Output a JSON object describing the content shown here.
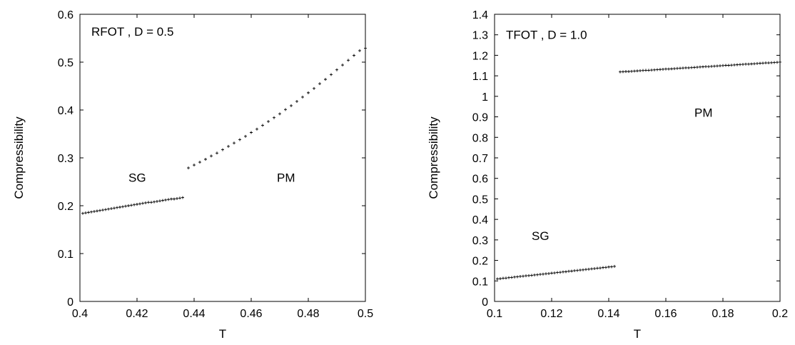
{
  "chart_data": [
    {
      "type": "scatter",
      "xlabel": "T",
      "ylabel": "Compressibility",
      "xlim": [
        0.4,
        0.5
      ],
      "ylim": [
        0,
        0.6
      ],
      "xticks": [
        "0.4",
        "0.42",
        "0.44",
        "0.46",
        "0.48",
        "0.5"
      ],
      "yticks": [
        "0",
        "0.1",
        "0.2",
        "0.3",
        "0.4",
        "0.5",
        "0.6"
      ],
      "grid": false,
      "annotations": [
        {
          "text": "RFOT , D = 0.5",
          "x": 0.404,
          "y": 0.555
        },
        {
          "text": "SG",
          "x": 0.417,
          "y": 0.25
        },
        {
          "text": "PM",
          "x": 0.469,
          "y": 0.25
        }
      ],
      "series": [
        {
          "x": [
            0.401,
            0.402,
            0.403,
            0.404,
            0.405,
            0.406,
            0.407,
            0.408,
            0.409,
            0.41,
            0.411,
            0.412,
            0.413,
            0.414,
            0.415,
            0.416,
            0.417,
            0.418,
            0.419,
            0.42,
            0.421,
            0.422,
            0.423,
            0.424,
            0.425,
            0.426,
            0.427,
            0.428,
            0.429,
            0.43,
            0.431,
            0.432,
            0.433,
            0.434,
            0.435,
            0.436
          ],
          "y": [
            0.184,
            0.185,
            0.186,
            0.187,
            0.188,
            0.189,
            0.19,
            0.191,
            0.192,
            0.193,
            0.194,
            0.195,
            0.196,
            0.197,
            0.198,
            0.199,
            0.2,
            0.201,
            0.202,
            0.203,
            0.204,
            0.205,
            0.206,
            0.207,
            0.207,
            0.208,
            0.209,
            0.21,
            0.211,
            0.212,
            0.213,
            0.214,
            0.214,
            0.215,
            0.216,
            0.217
          ]
        },
        {
          "x": [
            0.438,
            0.44,
            0.442,
            0.444,
            0.446,
            0.448,
            0.45,
            0.452,
            0.454,
            0.456,
            0.458,
            0.46,
            0.462,
            0.464,
            0.466,
            0.468,
            0.47,
            0.472,
            0.474,
            0.476,
            0.478,
            0.48,
            0.482,
            0.484,
            0.486,
            0.488,
            0.49,
            0.492,
            0.494,
            0.496,
            0.498,
            0.5
          ],
          "y": [
            0.279,
            0.285,
            0.291,
            0.297,
            0.304,
            0.31,
            0.317,
            0.324,
            0.331,
            0.338,
            0.345,
            0.353,
            0.36,
            0.368,
            0.376,
            0.384,
            0.392,
            0.401,
            0.409,
            0.418,
            0.427,
            0.436,
            0.445,
            0.455,
            0.464,
            0.474,
            0.484,
            0.494,
            0.504,
            0.514,
            0.524,
            0.529
          ]
        }
      ]
    },
    {
      "type": "scatter",
      "xlabel": "T",
      "ylabel": "Compressibility",
      "xlim": [
        0.1,
        0.2
      ],
      "ylim": [
        0,
        1.4
      ],
      "xticks": [
        "0.1",
        "0.12",
        "0.14",
        "0.16",
        "0.18",
        "0.2"
      ],
      "yticks": [
        "0",
        "0.1",
        "0.2",
        "0.3",
        "0.4",
        "0.5",
        "0.6",
        "0.7",
        "0.8",
        "0.9",
        "1",
        "1.1",
        "1.2",
        "1.3",
        "1.4"
      ],
      "grid": false,
      "annotations": [
        {
          "text": "TFOT , D = 1.0",
          "x": 0.104,
          "y": 1.28
        },
        {
          "text": "SG",
          "x": 0.113,
          "y": 0.3
        },
        {
          "text": "PM",
          "x": 0.17,
          "y": 0.9
        }
      ],
      "series": [
        {
          "x": [
            0.101,
            0.102,
            0.103,
            0.104,
            0.105,
            0.106,
            0.107,
            0.108,
            0.109,
            0.11,
            0.111,
            0.112,
            0.113,
            0.114,
            0.115,
            0.116,
            0.117,
            0.118,
            0.119,
            0.12,
            0.121,
            0.122,
            0.123,
            0.124,
            0.125,
            0.126,
            0.127,
            0.128,
            0.129,
            0.13,
            0.131,
            0.132,
            0.133,
            0.134,
            0.135,
            0.136,
            0.137,
            0.138,
            0.139,
            0.14,
            0.141,
            0.142
          ],
          "y": [
            0.11,
            0.111,
            0.113,
            0.114,
            0.116,
            0.117,
            0.119,
            0.12,
            0.122,
            0.123,
            0.125,
            0.126,
            0.127,
            0.129,
            0.13,
            0.132,
            0.133,
            0.135,
            0.136,
            0.138,
            0.139,
            0.141,
            0.142,
            0.144,
            0.145,
            0.147,
            0.148,
            0.15,
            0.151,
            0.153,
            0.154,
            0.156,
            0.157,
            0.159,
            0.16,
            0.162,
            0.163,
            0.165,
            0.166,
            0.168,
            0.169,
            0.171
          ]
        },
        {
          "x": [
            0.144,
            0.145,
            0.146,
            0.147,
            0.148,
            0.149,
            0.15,
            0.151,
            0.152,
            0.153,
            0.154,
            0.155,
            0.156,
            0.157,
            0.158,
            0.159,
            0.16,
            0.161,
            0.162,
            0.163,
            0.164,
            0.165,
            0.166,
            0.167,
            0.168,
            0.169,
            0.17,
            0.171,
            0.172,
            0.173,
            0.174,
            0.175,
            0.176,
            0.177,
            0.178,
            0.179,
            0.18,
            0.181,
            0.182,
            0.183,
            0.184,
            0.185,
            0.186,
            0.187,
            0.188,
            0.189,
            0.19,
            0.191,
            0.192,
            0.193,
            0.194,
            0.195,
            0.196,
            0.197,
            0.198,
            0.199,
            0.2
          ],
          "y": [
            1.119,
            1.12,
            1.121,
            1.121,
            1.122,
            1.123,
            1.124,
            1.125,
            1.126,
            1.127,
            1.127,
            1.128,
            1.129,
            1.13,
            1.131,
            1.132,
            1.133,
            1.133,
            1.134,
            1.135,
            1.136,
            1.137,
            1.138,
            1.139,
            1.139,
            1.14,
            1.141,
            1.142,
            1.143,
            1.144,
            1.145,
            1.145,
            1.146,
            1.147,
            1.148,
            1.149,
            1.15,
            1.151,
            1.151,
            1.152,
            1.153,
            1.154,
            1.155,
            1.156,
            1.157,
            1.157,
            1.158,
            1.159,
            1.16,
            1.161,
            1.162,
            1.163,
            1.163,
            1.164,
            1.165,
            1.166,
            1.167
          ]
        }
      ]
    }
  ]
}
